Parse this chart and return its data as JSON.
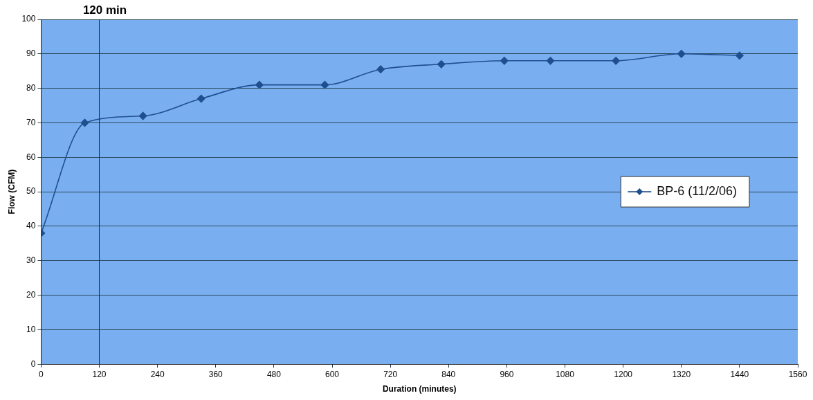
{
  "chart_data": {
    "type": "line",
    "xlabel": "Duration (minutes)",
    "ylabel": "Flow (CFM)",
    "xlim": [
      0,
      1560
    ],
    "xticks": [
      0,
      120,
      240,
      360,
      480,
      600,
      720,
      840,
      960,
      1080,
      1200,
      1320,
      1440,
      1560
    ],
    "ylim": [
      0,
      100
    ],
    "yticks": [
      0,
      10,
      20,
      30,
      40,
      50,
      60,
      70,
      80,
      90,
      100
    ],
    "grid": "y",
    "legend": "right",
    "marker": "diamond",
    "line_style": "solid",
    "ref_lines": [
      {
        "axis": "x",
        "value": 120,
        "label": "120 min",
        "color": "#1a2a3a"
      }
    ],
    "series": [
      {
        "name": "BP-6 (11/2/06)",
        "color": "#1f4f8f",
        "x": [
          0,
          90,
          210,
          330,
          450,
          585,
          700,
          825,
          955,
          1050,
          1185,
          1320,
          1440
        ],
        "values": [
          38,
          70,
          72,
          77,
          81,
          81,
          85.5,
          87,
          88,
          88,
          88,
          90,
          89.5
        ]
      }
    ]
  }
}
